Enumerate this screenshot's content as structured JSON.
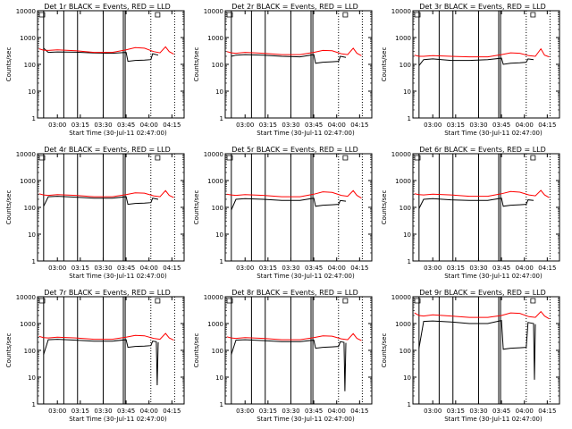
{
  "chart_data": [
    {
      "type": "line",
      "title": "Det 1r BLACK = Events, RED = LLD",
      "xlabel": "Start Time (30-Jul-11 02:47:00)",
      "ylabel": "Counts/sec",
      "x_ticks": [
        "03:00",
        "03:15",
        "03:30",
        "03:45",
        "04:00",
        "04:15"
      ],
      "y_ticks": [
        "1",
        "10",
        "100",
        "1000",
        "10000"
      ],
      "y_scale": "log",
      "ylim": [
        1,
        10000
      ],
      "series": [
        {
          "name": "Events",
          "color": "#000000",
          "x": [
            2.85,
            2.9,
            3.0,
            3.2,
            3.4,
            3.6,
            3.75,
            3.77,
            3.85,
            3.95,
            4.02,
            4.04,
            4.1
          ],
          "y": [
            400,
            280,
            290,
            285,
            265,
            260,
            280,
            130,
            140,
            145,
            150,
            250,
            220
          ]
        },
        {
          "name": "LLD",
          "color": "#ff0000",
          "x": [
            2.8,
            2.85,
            2.9,
            3.0,
            3.2,
            3.4,
            3.6,
            3.75,
            3.85,
            3.95,
            4.05,
            4.12,
            4.18,
            4.22,
            4.27
          ],
          "y": [
            380,
            340,
            330,
            350,
            320,
            280,
            280,
            350,
            420,
            400,
            300,
            270,
            450,
            300,
            240
          ]
        }
      ]
    },
    {
      "type": "line",
      "title": "Det 2r BLACK = Events, RED = LLD",
      "xlabel": "Start Time (30-Jul-11 02:47:00)",
      "ylabel": "Counts/sec",
      "x_ticks": [
        "03:00",
        "03:15",
        "03:30",
        "03:45",
        "04:00",
        "04:15"
      ],
      "y_ticks": [
        "1",
        "10",
        "100",
        "1000",
        "10000"
      ],
      "y_scale": "log",
      "ylim": [
        1,
        10000
      ],
      "series": [
        {
          "name": "Events",
          "color": "#000000",
          "x": [
            2.85,
            2.9,
            3.0,
            3.2,
            3.4,
            3.6,
            3.75,
            3.77,
            3.85,
            3.95,
            4.02,
            4.04,
            4.1
          ],
          "y": [
            200,
            220,
            230,
            220,
            200,
            190,
            230,
            110,
            120,
            125,
            130,
            200,
            180
          ]
        },
        {
          "name": "LLD",
          "color": "#ff0000",
          "x": [
            2.8,
            2.85,
            2.9,
            3.0,
            3.2,
            3.4,
            3.6,
            3.75,
            3.85,
            3.95,
            4.05,
            4.12,
            4.18,
            4.22,
            4.27
          ],
          "y": [
            300,
            270,
            260,
            280,
            260,
            230,
            230,
            280,
            330,
            320,
            250,
            230,
            400,
            260,
            210
          ]
        }
      ]
    },
    {
      "type": "line",
      "title": "Det 3r BLACK = Events, RED = LLD",
      "xlabel": "Start Time (30-Jul-11 02:47:00)",
      "ylabel": "Counts/sec",
      "x_ticks": [
        "03:00",
        "03:15",
        "03:30",
        "03:45",
        "04:00",
        "04:15"
      ],
      "y_ticks": [
        "1",
        "10",
        "100",
        "1000",
        "10000"
      ],
      "y_scale": "log",
      "ylim": [
        1,
        10000
      ],
      "series": [
        {
          "name": "Events",
          "color": "#000000",
          "x": [
            2.85,
            2.9,
            3.0,
            3.2,
            3.4,
            3.6,
            3.75,
            3.77,
            3.85,
            3.95,
            4.02,
            4.04,
            4.1
          ],
          "y": [
            90,
            150,
            160,
            140,
            140,
            150,
            170,
            100,
            110,
            115,
            120,
            160,
            150
          ]
        },
        {
          "name": "LLD",
          "color": "#ff0000",
          "x": [
            2.8,
            2.85,
            2.9,
            3.0,
            3.2,
            3.4,
            3.6,
            3.75,
            3.85,
            3.95,
            4.05,
            4.12,
            4.18,
            4.22,
            4.27
          ],
          "y": [
            220,
            200,
            200,
            210,
            200,
            190,
            190,
            230,
            270,
            260,
            210,
            200,
            380,
            220,
            190
          ]
        }
      ]
    },
    {
      "type": "line",
      "title": "Det 4r BLACK = Events, RED = LLD",
      "xlabel": "Start Time (30-Jul-11 02:47:00)",
      "ylabel": "Counts/sec",
      "x_ticks": [
        "03:00",
        "03:15",
        "03:30",
        "03:45",
        "04:00",
        "04:15"
      ],
      "y_ticks": [
        "1",
        "10",
        "100",
        "1000",
        "10000"
      ],
      "y_scale": "log",
      "ylim": [
        1,
        10000
      ],
      "series": [
        {
          "name": "Events",
          "color": "#000000",
          "x": [
            2.85,
            2.9,
            3.0,
            3.2,
            3.4,
            3.6,
            3.75,
            3.77,
            3.85,
            3.95,
            4.02,
            4.04,
            4.1
          ],
          "y": [
            110,
            250,
            260,
            240,
            220,
            220,
            250,
            130,
            140,
            145,
            150,
            220,
            200
          ]
        },
        {
          "name": "LLD",
          "color": "#ff0000",
          "x": [
            2.8,
            2.85,
            2.9,
            3.0,
            3.2,
            3.4,
            3.6,
            3.75,
            3.85,
            3.95,
            4.05,
            4.12,
            4.18,
            4.22,
            4.27
          ],
          "y": [
            320,
            290,
            280,
            300,
            280,
            250,
            250,
            300,
            350,
            340,
            270,
            250,
            420,
            280,
            230
          ]
        }
      ]
    },
    {
      "type": "line",
      "title": "Det 5r BLACK = Events, RED = LLD",
      "xlabel": "Start Time (30-Jul-11 02:47:00)",
      "ylabel": "Counts/sec",
      "x_ticks": [
        "03:00",
        "03:15",
        "03:30",
        "03:45",
        "04:00",
        "04:15"
      ],
      "y_ticks": [
        "1",
        "10",
        "100",
        "1000",
        "10000"
      ],
      "y_scale": "log",
      "ylim": [
        1,
        10000
      ],
      "series": [
        {
          "name": "Events",
          "color": "#000000",
          "x": [
            2.85,
            2.9,
            3.0,
            3.2,
            3.4,
            3.6,
            3.75,
            3.77,
            3.85,
            3.95,
            4.02,
            4.04,
            4.1
          ],
          "y": [
            80,
            200,
            210,
            200,
            180,
            180,
            220,
            110,
            120,
            125,
            130,
            180,
            170
          ]
        },
        {
          "name": "LLD",
          "color": "#ff0000",
          "x": [
            2.8,
            2.85,
            2.9,
            3.0,
            3.2,
            3.4,
            3.6,
            3.75,
            3.85,
            3.95,
            4.05,
            4.12,
            4.18,
            4.22,
            4.27
          ],
          "y": [
            310,
            290,
            280,
            300,
            280,
            250,
            250,
            310,
            380,
            360,
            280,
            260,
            420,
            280,
            220
          ]
        }
      ]
    },
    {
      "type": "line",
      "title": "Det 6r BLACK = Events, RED = LLD",
      "xlabel": "Start Time (30-Jul-11 02:47:00)",
      "ylabel": "Counts/sec",
      "x_ticks": [
        "03:00",
        "03:15",
        "03:30",
        "03:45",
        "04:00",
        "04:15"
      ],
      "y_ticks": [
        "1",
        "10",
        "100",
        "1000",
        "10000"
      ],
      "y_scale": "log",
      "ylim": [
        1,
        10000
      ],
      "series": [
        {
          "name": "Events",
          "color": "#000000",
          "x": [
            2.85,
            2.9,
            3.0,
            3.2,
            3.4,
            3.6,
            3.75,
            3.77,
            3.85,
            3.95,
            4.02,
            4.04,
            4.1
          ],
          "y": [
            90,
            200,
            210,
            190,
            180,
            180,
            220,
            110,
            120,
            125,
            130,
            190,
            180
          ]
        },
        {
          "name": "LLD",
          "color": "#ff0000",
          "x": [
            2.8,
            2.85,
            2.9,
            3.0,
            3.2,
            3.4,
            3.6,
            3.75,
            3.85,
            3.95,
            4.05,
            4.12,
            4.18,
            4.22,
            4.27
          ],
          "y": [
            320,
            300,
            290,
            310,
            290,
            260,
            260,
            320,
            390,
            370,
            290,
            270,
            430,
            290,
            230
          ]
        }
      ]
    },
    {
      "type": "line",
      "title": "Det 7r BLACK = Events, RED = LLD",
      "xlabel": "Start Time (30-Jul-11 02:47:00)",
      "ylabel": "Counts/sec",
      "x_ticks": [
        "03:00",
        "03:15",
        "03:30",
        "03:45",
        "04:00",
        "04:15"
      ],
      "y_ticks": [
        "1",
        "10",
        "100",
        "1000",
        "10000"
      ],
      "y_scale": "log",
      "ylim": [
        1,
        10000
      ],
      "series": [
        {
          "name": "Events",
          "color": "#000000",
          "x": [
            2.85,
            2.9,
            3.0,
            3.2,
            3.4,
            3.6,
            3.75,
            3.77,
            3.85,
            3.95,
            4.02,
            4.04,
            4.08,
            4.09,
            4.1
          ],
          "y": [
            70,
            250,
            260,
            240,
            220,
            220,
            250,
            130,
            140,
            145,
            150,
            220,
            210,
            5,
            200
          ]
        },
        {
          "name": "LLD",
          "color": "#ff0000",
          "x": [
            2.8,
            2.85,
            2.9,
            3.0,
            3.2,
            3.4,
            3.6,
            3.75,
            3.85,
            3.95,
            4.05,
            4.12,
            4.18,
            4.22,
            4.27
          ],
          "y": [
            330,
            300,
            290,
            310,
            290,
            260,
            260,
            310,
            360,
            350,
            280,
            260,
            430,
            290,
            240
          ]
        }
      ]
    },
    {
      "type": "line",
      "title": "Det 8r BLACK = Events, RED = LLD",
      "xlabel": "Start Time (30-Jul-11 02:47:00)",
      "ylabel": "Counts/sec",
      "x_ticks": [
        "03:00",
        "03:15",
        "03:30",
        "03:45",
        "04:00",
        "04:15"
      ],
      "y_ticks": [
        "1",
        "10",
        "100",
        "1000",
        "10000"
      ],
      "y_scale": "log",
      "ylim": [
        1,
        10000
      ],
      "series": [
        {
          "name": "Events",
          "color": "#000000",
          "x": [
            2.85,
            2.9,
            3.0,
            3.2,
            3.4,
            3.6,
            3.75,
            3.77,
            3.85,
            3.95,
            4.02,
            4.04,
            4.08,
            4.09,
            4.1
          ],
          "y": [
            70,
            240,
            250,
            230,
            210,
            210,
            240,
            120,
            130,
            135,
            140,
            210,
            200,
            3,
            190
          ]
        },
        {
          "name": "LLD",
          "color": "#ff0000",
          "x": [
            2.8,
            2.85,
            2.9,
            3.0,
            3.2,
            3.4,
            3.6,
            3.75,
            3.85,
            3.95,
            4.05,
            4.12,
            4.18,
            4.22,
            4.27
          ],
          "y": [
            320,
            290,
            280,
            300,
            280,
            250,
            250,
            300,
            350,
            340,
            270,
            250,
            420,
            280,
            230
          ]
        }
      ]
    },
    {
      "type": "line",
      "title": "Det 9r BLACK = Events, RED = LLD",
      "xlabel": "Start Time (30-Jul-11 02:47:00)",
      "ylabel": "Counts/sec",
      "x_ticks": [
        "03:00",
        "03:15",
        "03:30",
        "03:45",
        "04:00",
        "04:15"
      ],
      "y_ticks": [
        "1",
        "10",
        "100",
        "1000",
        "10000"
      ],
      "y_scale": "log",
      "ylim": [
        1,
        10000
      ],
      "series": [
        {
          "name": "Events",
          "color": "#000000",
          "x": [
            2.85,
            2.9,
            3.0,
            3.2,
            3.4,
            3.6,
            3.75,
            3.77,
            3.85,
            3.95,
            4.02,
            4.04,
            4.1,
            4.11,
            4.12
          ],
          "y": [
            120,
            1200,
            1250,
            1150,
            1000,
            1000,
            1300,
            110,
            120,
            125,
            130,
            1100,
            1000,
            8,
            950
          ]
        },
        {
          "name": "LLD",
          "color": "#ff0000",
          "x": [
            2.8,
            2.85,
            2.9,
            3.0,
            3.2,
            3.4,
            3.6,
            3.75,
            3.85,
            3.95,
            4.05,
            4.12,
            4.18,
            4.22,
            4.27
          ],
          "y": [
            2500,
            2000,
            1900,
            2100,
            1900,
            1700,
            1700,
            2000,
            2500,
            2400,
            1800,
            1700,
            2800,
            1900,
            1500
          ]
        }
      ]
    }
  ]
}
